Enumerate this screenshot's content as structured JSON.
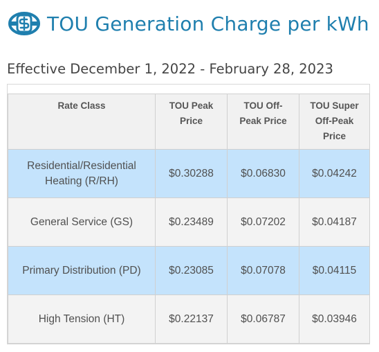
{
  "header": {
    "icon": "dollar-coin-icon",
    "title": "TOU Generation Charge per kWh"
  },
  "effective_text": "Effective December 1, 2022 - February 28, 2023",
  "colors": {
    "accent": "#1f7fae",
    "row_highlight": "#c4e3fc",
    "row_alt": "#f3f3f3"
  },
  "table": {
    "columns": [
      "Rate Class",
      "TOU Peak Price",
      "TOU Off-Peak Price",
      "TOU Super Off-Peak Price"
    ],
    "rows": [
      [
        "Residential/Residential Heating (R/RH)",
        "$0.30288",
        "$0.06830",
        "$0.04242"
      ],
      [
        "General Service (GS)",
        "$0.23489",
        "$0.07202",
        "$0.04187"
      ],
      [
        "Primary Distribution (PD)",
        "$0.23085",
        "$0.07078",
        "$0.04115"
      ],
      [
        "High Tension (HT)",
        "$0.22137",
        "$0.06787",
        "$0.03946"
      ]
    ]
  }
}
